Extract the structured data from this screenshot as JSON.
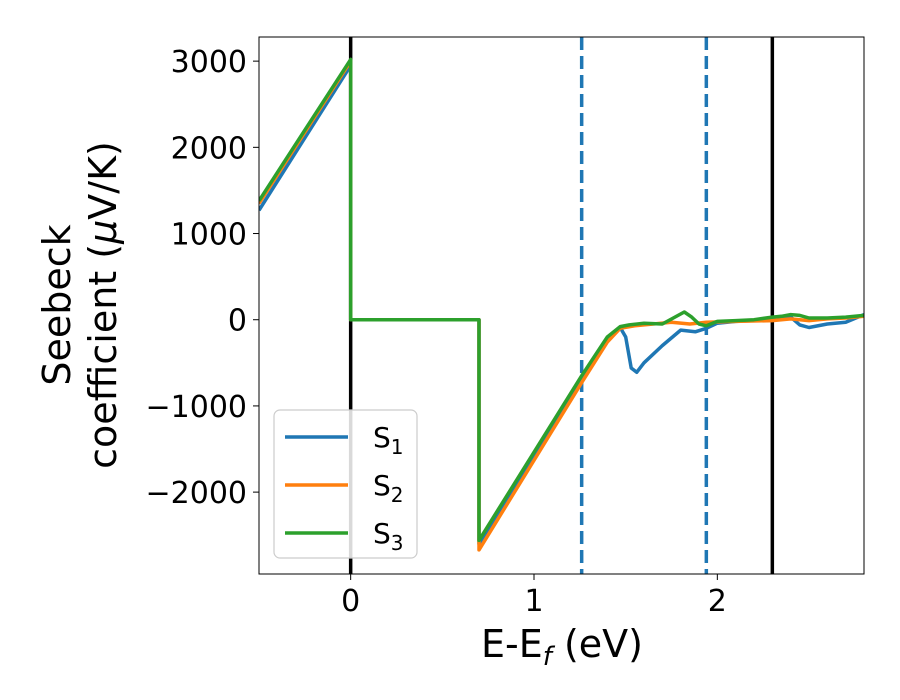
{
  "chart_data": {
    "type": "line",
    "xlabel": "E-E",
    "xlabel_sub": "f",
    "xlabel_unit": " (eV)",
    "ylabel_line1": "Seebeck",
    "ylabel_line2": "coefficient  (",
    "ylabel_mu": "μ",
    "ylabel_unit": "V/K)",
    "xlim": [
      -0.5,
      2.8
    ],
    "ylim": [
      -2950,
      3280
    ],
    "xticks": [
      0,
      1,
      2
    ],
    "xtick_labels": [
      "0",
      "1",
      "2"
    ],
    "yticks": [
      3000,
      2000,
      1000,
      0,
      -1000,
      -2000
    ],
    "ytick_labels": [
      "3000",
      "2000",
      "1000",
      "0",
      "−1000",
      "−2000"
    ],
    "grid": false,
    "legend_position": "lower-left",
    "vertical_lines": [
      {
        "x": 0.0,
        "style": "solid",
        "color": "#000000"
      },
      {
        "x": 2.3,
        "style": "solid",
        "color": "#000000"
      },
      {
        "x": 1.26,
        "style": "dashed",
        "color": "#1f77b4"
      },
      {
        "x": 1.94,
        "style": "dashed",
        "color": "#1f77b4"
      }
    ],
    "series": [
      {
        "name": "S",
        "sub": "1",
        "color": "#1f77b4",
        "points": [
          [
            -0.5,
            1270
          ],
          [
            0.0,
            2950
          ],
          [
            0.0,
            0
          ],
          [
            0.7,
            0
          ],
          [
            0.7,
            -2600
          ],
          [
            1.26,
            -720
          ],
          [
            1.4,
            -250
          ],
          [
            1.47,
            -90
          ],
          [
            1.5,
            -200
          ],
          [
            1.53,
            -560
          ],
          [
            1.56,
            -610
          ],
          [
            1.6,
            -500
          ],
          [
            1.7,
            -300
          ],
          [
            1.8,
            -120
          ],
          [
            1.88,
            -140
          ],
          [
            1.94,
            -100
          ],
          [
            2.0,
            -40
          ],
          [
            2.1,
            -20
          ],
          [
            2.2,
            -10
          ],
          [
            2.3,
            20
          ],
          [
            2.4,
            30
          ],
          [
            2.45,
            -60
          ],
          [
            2.5,
            -90
          ],
          [
            2.6,
            -50
          ],
          [
            2.7,
            -30
          ],
          [
            2.8,
            60
          ]
        ]
      },
      {
        "name": "S",
        "sub": "2",
        "color": "#ff7f0e",
        "points": [
          [
            -0.5,
            1350
          ],
          [
            0.0,
            3000
          ],
          [
            0.0,
            0
          ],
          [
            0.7,
            0
          ],
          [
            0.7,
            -2670
          ],
          [
            1.26,
            -730
          ],
          [
            1.4,
            -260
          ],
          [
            1.47,
            -100
          ],
          [
            1.55,
            -70
          ],
          [
            1.65,
            -50
          ],
          [
            1.75,
            -30
          ],
          [
            1.85,
            -50
          ],
          [
            1.94,
            -30
          ],
          [
            2.1,
            -20
          ],
          [
            2.3,
            -10
          ],
          [
            2.4,
            10
          ],
          [
            2.5,
            -10
          ],
          [
            2.6,
            10
          ],
          [
            2.7,
            20
          ],
          [
            2.8,
            40
          ]
        ]
      },
      {
        "name": "S",
        "sub": "3",
        "color": "#2ca02c",
        "points": [
          [
            -0.5,
            1380
          ],
          [
            0.0,
            3020
          ],
          [
            0.0,
            0
          ],
          [
            0.7,
            0
          ],
          [
            0.7,
            -2560
          ],
          [
            1.26,
            -650
          ],
          [
            1.4,
            -200
          ],
          [
            1.47,
            -80
          ],
          [
            1.52,
            -60
          ],
          [
            1.6,
            -40
          ],
          [
            1.7,
            -50
          ],
          [
            1.76,
            20
          ],
          [
            1.82,
            90
          ],
          [
            1.86,
            30
          ],
          [
            1.9,
            -50
          ],
          [
            1.94,
            -70
          ],
          [
            2.0,
            -20
          ],
          [
            2.1,
            -10
          ],
          [
            2.2,
            0
          ],
          [
            2.3,
            30
          ],
          [
            2.35,
            40
          ],
          [
            2.4,
            60
          ],
          [
            2.45,
            50
          ],
          [
            2.5,
            20
          ],
          [
            2.6,
            20
          ],
          [
            2.7,
            30
          ],
          [
            2.8,
            50
          ]
        ]
      }
    ]
  }
}
